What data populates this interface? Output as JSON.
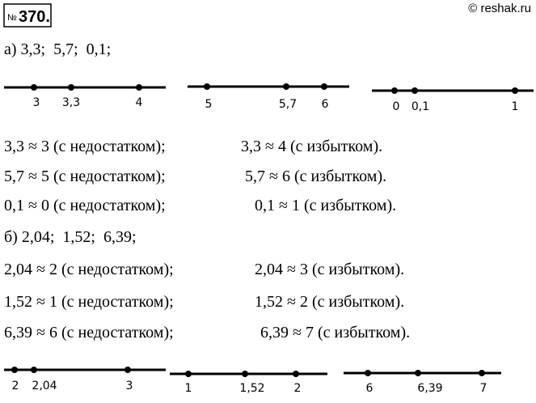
{
  "header": {
    "number_sign": "№",
    "number": "370.",
    "source": "© reshak.ru"
  },
  "part_a": {
    "label": "а) 3,3;  5,7;  0,1;",
    "number_lines": [
      {
        "labels": [
          "3",
          "3,3",
          "4"
        ]
      },
      {
        "labels": [
          "5",
          "5,7",
          "6"
        ]
      },
      {
        "labels": [
          "0",
          "0,1",
          "1"
        ]
      }
    ],
    "rows": [
      [
        "3,3 ≈ 3 (с недостатком);",
        "3,3 ≈ 4 (с избытком)."
      ],
      [
        "5,7 ≈ 5 (с недостатком);",
        "5,7 ≈ 6 (с избытком)."
      ],
      [
        "0,1 ≈ 0 (с недостатком);",
        "0,1 ≈ 1 (с избытком)."
      ]
    ]
  },
  "part_b": {
    "label": "б) 2,04;  1,52;  6,39;",
    "rows": [
      [
        "2,04 ≈ 2 (с недостатком);",
        "2,04 ≈ 3 (с избытком)."
      ],
      [
        "1,52 ≈ 1 (с недостатком);",
        "1,52 ≈ 2 (с избытком)."
      ],
      [
        "6,39 ≈ 6 (с недостатком);",
        "6,39 ≈ 7 (с избытком)."
      ]
    ],
    "number_lines": [
      {
        "labels": [
          "2",
          "2,04",
          "3"
        ]
      },
      {
        "labels": [
          "1",
          "1,52",
          "2"
        ]
      },
      {
        "labels": [
          "6",
          "6,39",
          "7"
        ]
      }
    ]
  }
}
